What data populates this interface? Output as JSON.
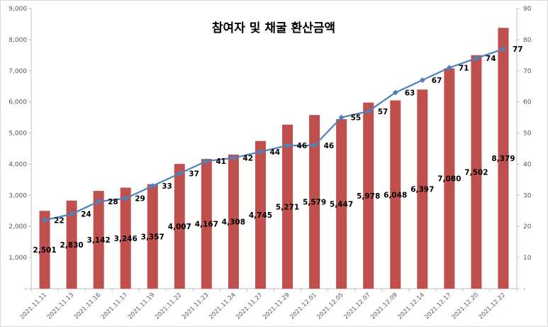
{
  "chart_data": {
    "type": "bar",
    "title": "참여자 및 채굴 환산금액",
    "categories": [
      "2021.11.11",
      "2021.11.13",
      "2021.11.16",
      "2021.11.17",
      "2021.11.19",
      "2021.11.22",
      "2021.11.23",
      "2021.11.24",
      "2021.11.27",
      "2021.11.29",
      "2021.12.01",
      "2021.12.05",
      "2021.12.07",
      "2021.12.09",
      "2021.12.14",
      "2021.12.17",
      "2021.12.20",
      "2021.12.22"
    ],
    "series": [
      {
        "type": "bar",
        "axis": "left",
        "color": "#c0504d",
        "values": [
          2501,
          2830,
          3142,
          3246,
          3357,
          4007,
          4167,
          4308,
          4745,
          5271,
          5579,
          5447,
          5978,
          6048,
          6397,
          7080,
          7502,
          8379
        ],
        "labels": [
          "2,501",
          "2,830",
          "3,142",
          "3,246",
          "3,357",
          "4,007",
          "4,167",
          "4,308",
          "4,745",
          "5,271",
          "5,579",
          "5,447",
          "5,978",
          "6,048",
          "6,397",
          "7,080",
          "7,502",
          "8,379"
        ]
      },
      {
        "type": "line",
        "axis": "right",
        "color": "#4f81bd",
        "marker": "diamond",
        "values": [
          22,
          24,
          28,
          29,
          33,
          37,
          41,
          42,
          44,
          46,
          46,
          55,
          57,
          63,
          67,
          71,
          74,
          77
        ]
      }
    ],
    "y_left": {
      "min": 0,
      "max": 9000,
      "ticks": [
        0,
        1000,
        2000,
        3000,
        4000,
        5000,
        6000,
        7000,
        8000,
        9000
      ],
      "tick_labels": [
        "-",
        "1,000",
        "2,000",
        "3,000",
        "4,000",
        "5,000",
        "6,000",
        "7,000",
        "8,000",
        "9,000"
      ]
    },
    "y_right": {
      "min": 0,
      "max": 90,
      "ticks": [
        0,
        10,
        20,
        30,
        40,
        50,
        60,
        70,
        80,
        90
      ],
      "tick_labels": [
        "-",
        "10",
        "20",
        "30",
        "40",
        "50",
        "60",
        "70",
        "80",
        "90"
      ]
    },
    "grid": false,
    "legend": "none"
  }
}
